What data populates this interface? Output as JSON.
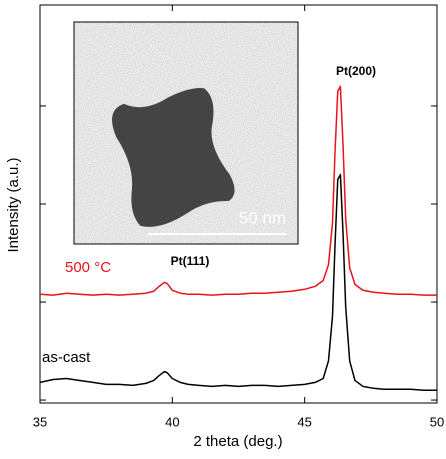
{
  "chart_data": {
    "type": "line",
    "xlabel": "2 theta (deg.)",
    "ylabel": "Intensity (a.u.)",
    "x": [
      35,
      35.5,
      36,
      36.5,
      37,
      37.5,
      38,
      38.5,
      39,
      39.3,
      39.5,
      39.7,
      39.8,
      40,
      40.3,
      40.6,
      41,
      41.5,
      42,
      42.5,
      43,
      43.5,
      44,
      44.5,
      45,
      45.4,
      45.7,
      45.9,
      46.05,
      46.15,
      46.25,
      46.35,
      46.45,
      46.55,
      46.7,
      46.9,
      47.2,
      47.6,
      48,
      48.5,
      49,
      49.5,
      50
    ],
    "series": [
      {
        "name": "500 °C",
        "color": "#e8131b",
        "values": [
          1.08,
          1.07,
          1.09,
          1.08,
          1.07,
          1.08,
          1.07,
          1.08,
          1.09,
          1.11,
          1.16,
          1.2,
          1.19,
          1.12,
          1.09,
          1.08,
          1.08,
          1.07,
          1.08,
          1.08,
          1.09,
          1.09,
          1.1,
          1.11,
          1.13,
          1.16,
          1.22,
          1.38,
          1.8,
          2.55,
          3.15,
          3.2,
          2.6,
          1.85,
          1.35,
          1.18,
          1.12,
          1.1,
          1.09,
          1.08,
          1.08,
          1.07,
          1.07
        ]
      },
      {
        "name": "as-cast",
        "color": "#000000",
        "values": [
          0.18,
          0.21,
          0.22,
          0.2,
          0.18,
          0.16,
          0.16,
          0.15,
          0.17,
          0.2,
          0.25,
          0.29,
          0.28,
          0.22,
          0.18,
          0.16,
          0.15,
          0.14,
          0.15,
          0.14,
          0.15,
          0.15,
          0.14,
          0.15,
          0.16,
          0.18,
          0.22,
          0.4,
          0.85,
          1.6,
          2.25,
          2.3,
          1.7,
          0.95,
          0.4,
          0.2,
          0.14,
          0.12,
          0.11,
          0.11,
          0.11,
          0.1,
          0.1
        ]
      }
    ],
    "xlim": [
      35,
      50
    ],
    "xticks": [
      35,
      40,
      45,
      50
    ],
    "ylim": [
      -0.03,
      4.03
    ],
    "yticks": [
      0,
      1,
      2,
      3
    ],
    "annotations": [
      "Pt(111)",
      "Pt(200)"
    ],
    "inset_scale_bar": "50 nm"
  }
}
